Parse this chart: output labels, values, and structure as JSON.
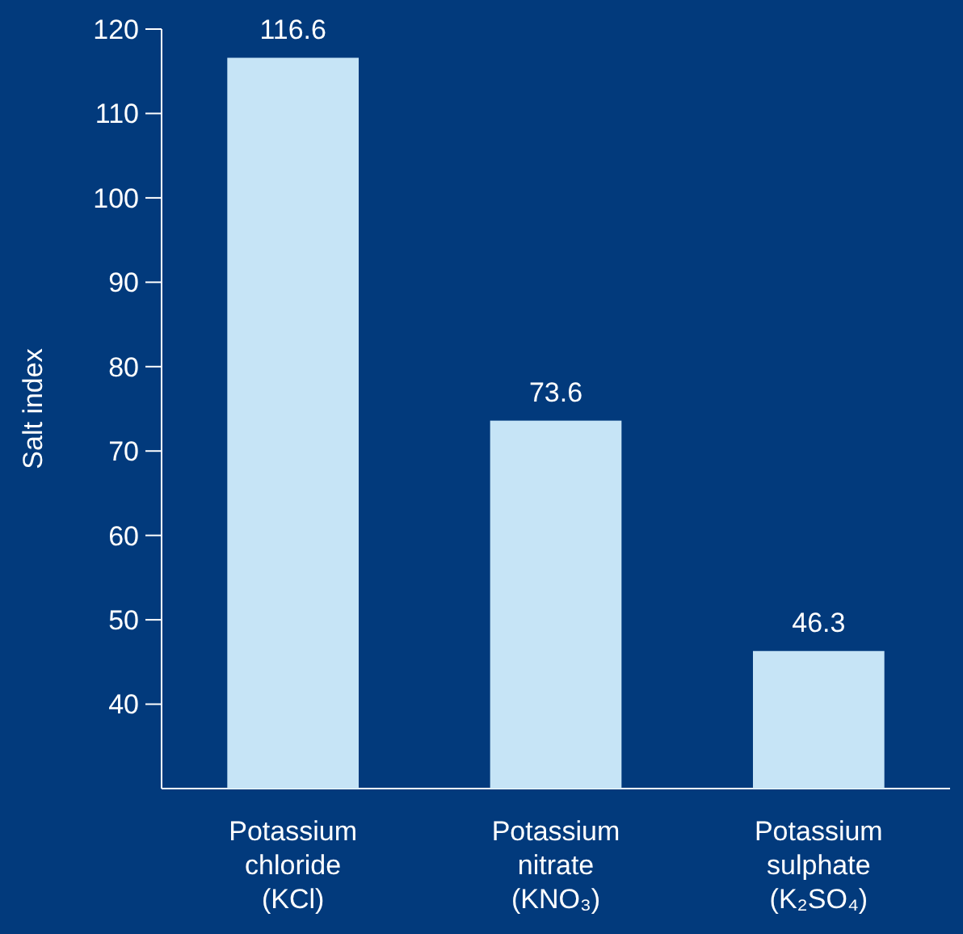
{
  "chart_data": {
    "type": "bar",
    "ylabel": "Salt index",
    "categories": [
      "Potassium\nchloride\n(KCl)",
      "Potassium\nnitrate\n(KNO₃)",
      "Potassium\nsulphate\n(K₂SO₄)"
    ],
    "values": [
      116.6,
      73.6,
      46.3
    ],
    "color": "#c6e4f6",
    "ylim": [
      30,
      120
    ],
    "yticks": [
      40,
      50,
      60,
      70,
      80,
      90,
      100,
      110,
      120
    ],
    "grid": false,
    "data_labels": true
  }
}
